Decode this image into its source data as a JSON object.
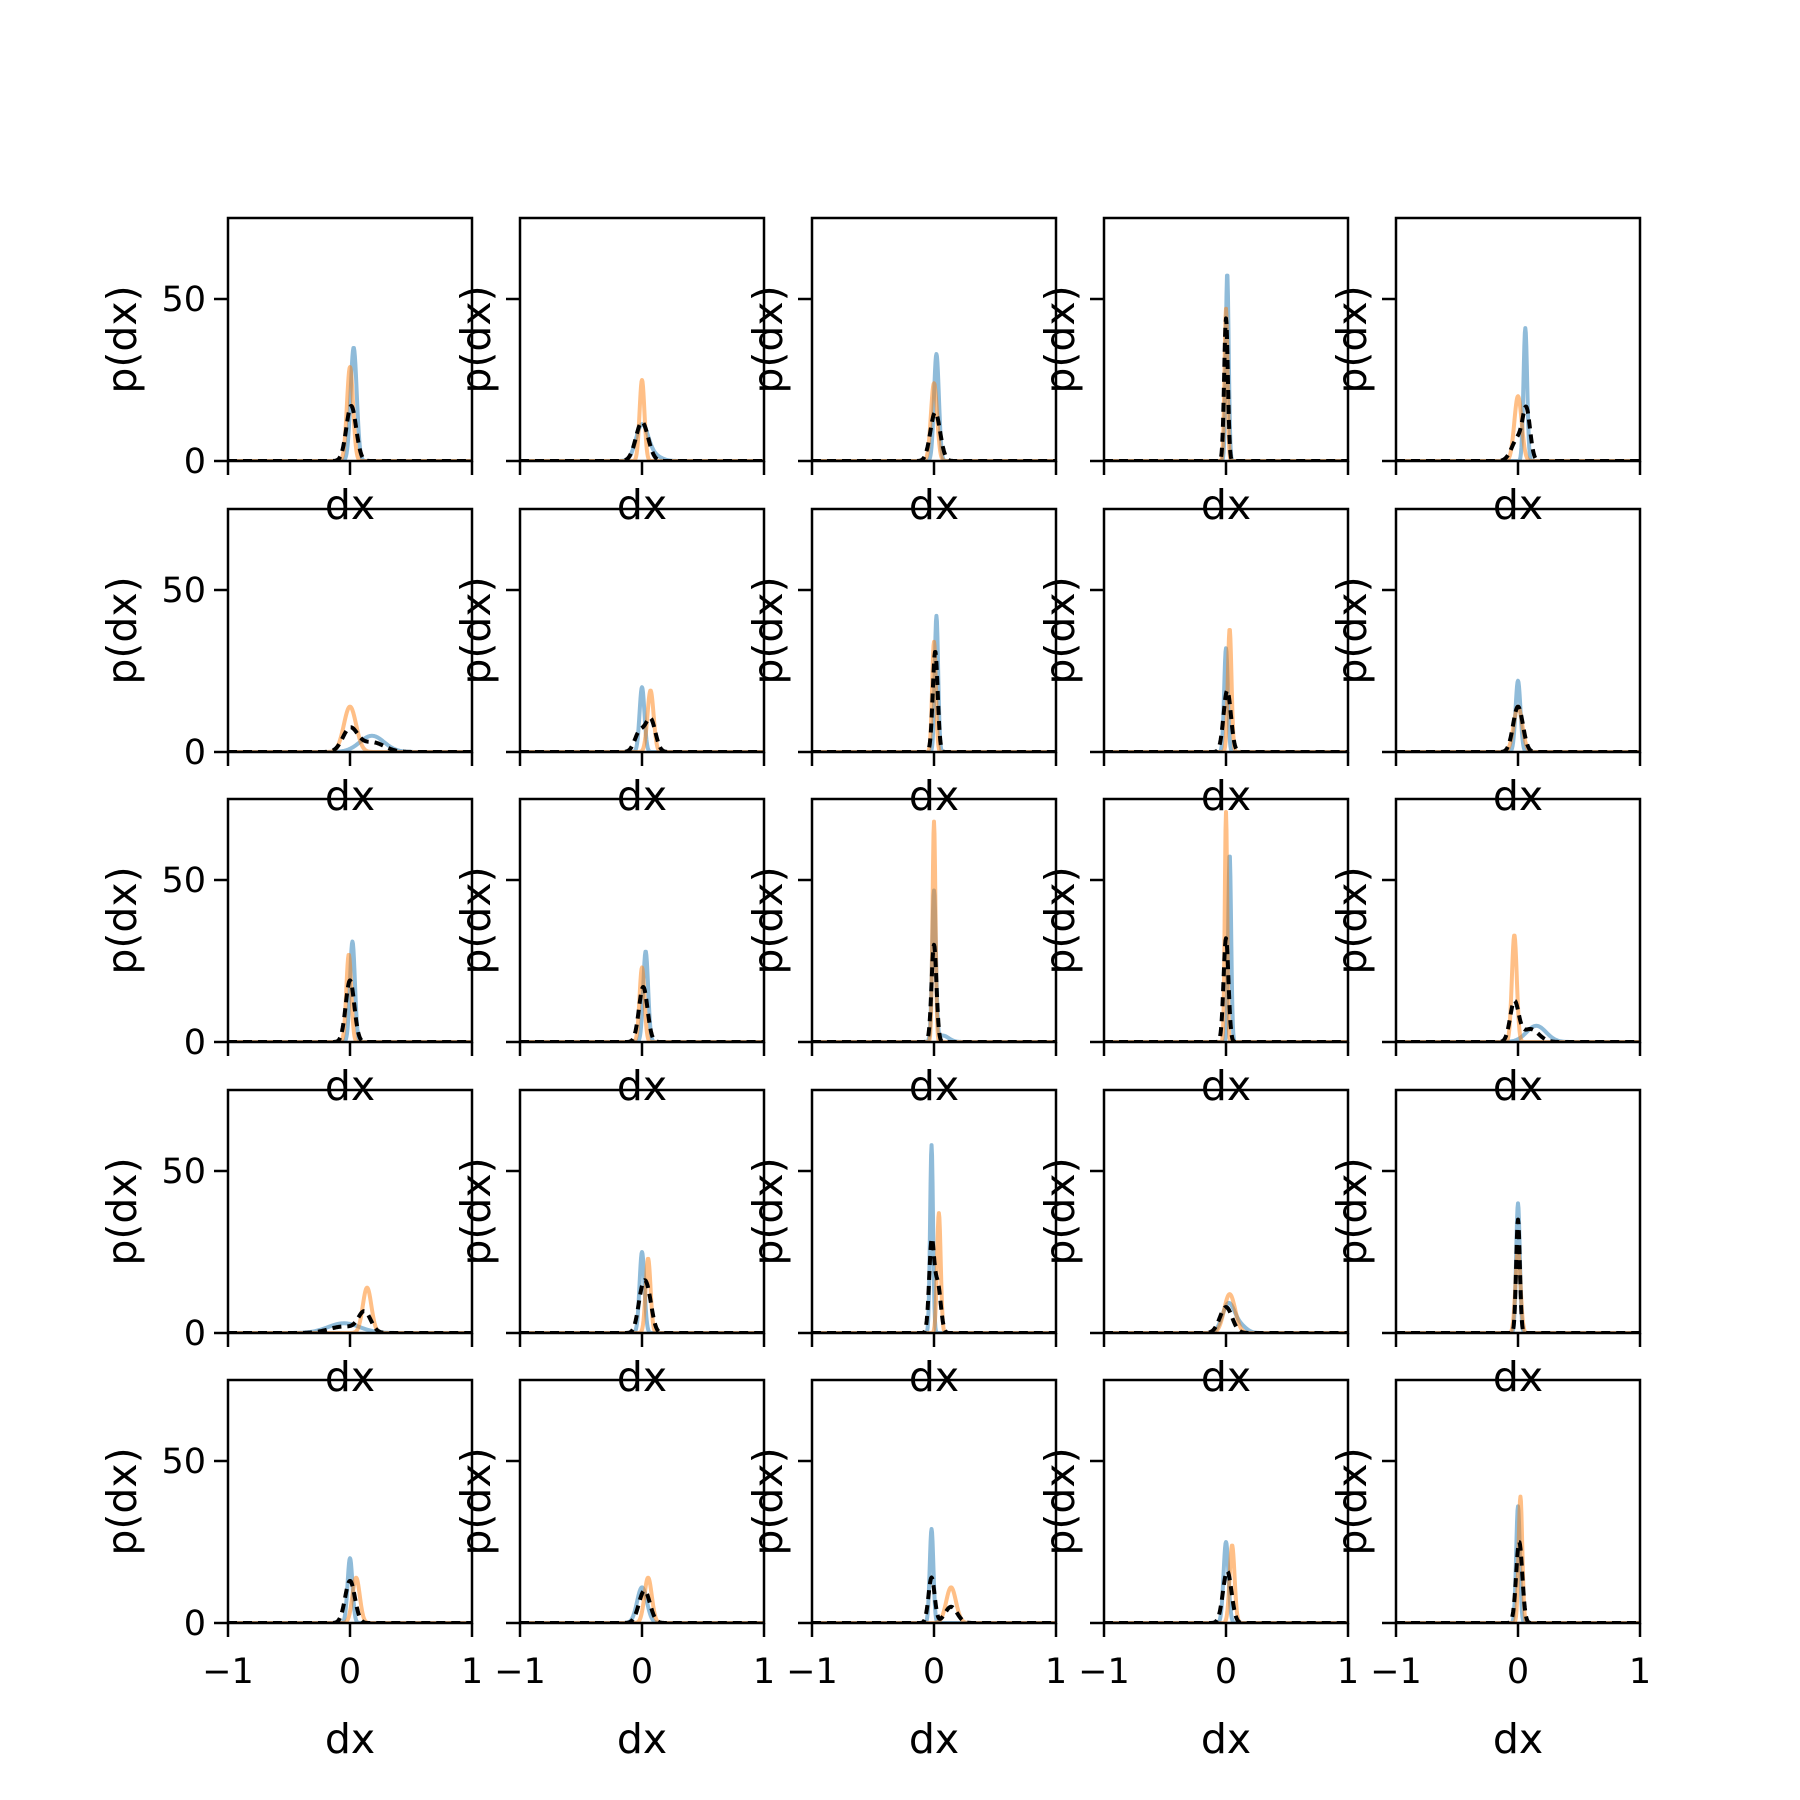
{
  "chart_data": {
    "type": "histogram-grid",
    "rows": 5,
    "cols": 5,
    "xlabel": "dx",
    "ylabel": "p(dx)",
    "xlim": [
      -1,
      1
    ],
    "ylim": [
      0,
      75
    ],
    "xticks": [
      -1,
      0,
      1
    ],
    "xtick_labels": [
      "−1",
      "0",
      "1"
    ],
    "yticks": [
      0,
      50
    ],
    "ytick_labels": [
      "0",
      "50"
    ],
    "grid": false,
    "colors": {
      "blue": "#1f77b4",
      "orange": "#ff7f0e",
      "dashed": "#000000"
    },
    "panels": [
      {
        "peaks": [
          {
            "s": "b",
            "x": 0.03,
            "h": 35,
            "w": 0.025
          },
          {
            "s": "o",
            "x": 0.0,
            "h": 29,
            "w": 0.025
          },
          {
            "s": "d",
            "x": 0.01,
            "h": 17,
            "w": 0.04
          }
        ]
      },
      {
        "peaks": [
          {
            "s": "b",
            "x": 0.0,
            "h": 11,
            "w": 0.05
          },
          {
            "s": "b",
            "x": 0.1,
            "h": 1.5,
            "w": 0.06
          },
          {
            "s": "o",
            "x": 0.0,
            "h": 25,
            "w": 0.02
          },
          {
            "s": "d",
            "x": 0.0,
            "h": 12,
            "w": 0.05
          }
        ]
      },
      {
        "peaks": [
          {
            "s": "b",
            "x": 0.02,
            "h": 33,
            "w": 0.02
          },
          {
            "s": "o",
            "x": 0.0,
            "h": 24,
            "w": 0.025
          },
          {
            "s": "d",
            "x": 0.01,
            "h": 15,
            "w": 0.04
          }
        ]
      },
      {
        "peaks": [
          {
            "s": "b",
            "x": 0.01,
            "h": 58,
            "w": 0.012
          },
          {
            "s": "o",
            "x": 0.0,
            "h": 47,
            "w": 0.012
          },
          {
            "s": "d",
            "x": 0.0,
            "h": 44,
            "w": 0.015
          }
        ]
      },
      {
        "peaks": [
          {
            "s": "b",
            "x": 0.06,
            "h": 41,
            "w": 0.015
          },
          {
            "s": "o",
            "x": 0.0,
            "h": 20,
            "w": 0.03
          },
          {
            "s": "d",
            "x": 0.07,
            "h": 14,
            "w": 0.03
          },
          {
            "s": "d",
            "x": 0.0,
            "h": 7,
            "w": 0.05
          }
        ]
      },
      {
        "peaks": [
          {
            "s": "b",
            "x": 0.18,
            "h": 5,
            "w": 0.1
          },
          {
            "s": "o",
            "x": 0.0,
            "h": 14,
            "w": 0.05
          },
          {
            "s": "d",
            "x": 0.0,
            "h": 7,
            "w": 0.06
          },
          {
            "s": "d",
            "x": 0.18,
            "h": 3,
            "w": 0.1
          }
        ]
      },
      {
        "peaks": [
          {
            "s": "b",
            "x": 0.0,
            "h": 20,
            "w": 0.02
          },
          {
            "s": "o",
            "x": 0.07,
            "h": 19,
            "w": 0.025
          },
          {
            "s": "d",
            "x": 0.07,
            "h": 10,
            "w": 0.04
          },
          {
            "s": "d",
            "x": -0.02,
            "h": 6,
            "w": 0.04
          }
        ]
      },
      {
        "peaks": [
          {
            "s": "b",
            "x": 0.02,
            "h": 42,
            "w": 0.014
          },
          {
            "s": "o",
            "x": 0.0,
            "h": 34,
            "w": 0.015
          },
          {
            "s": "d",
            "x": 0.01,
            "h": 31,
            "w": 0.02
          }
        ]
      },
      {
        "peaks": [
          {
            "s": "b",
            "x": 0.0,
            "h": 32,
            "w": 0.015
          },
          {
            "s": "o",
            "x": 0.03,
            "h": 38,
            "w": 0.015
          },
          {
            "s": "d",
            "x": 0.01,
            "h": 19,
            "w": 0.03
          }
        ]
      },
      {
        "peaks": [
          {
            "s": "b",
            "x": 0.0,
            "h": 22,
            "w": 0.02
          },
          {
            "s": "o",
            "x": 0.0,
            "h": 14,
            "w": 0.035
          },
          {
            "s": "d",
            "x": 0.0,
            "h": 14,
            "w": 0.04
          }
        ]
      },
      {
        "peaks": [
          {
            "s": "b",
            "x": 0.02,
            "h": 31,
            "w": 0.02
          },
          {
            "s": "o",
            "x": -0.01,
            "h": 27,
            "w": 0.02
          },
          {
            "s": "d",
            "x": 0.0,
            "h": 19,
            "w": 0.035
          }
        ]
      },
      {
        "peaks": [
          {
            "s": "b",
            "x": 0.03,
            "h": 28,
            "w": 0.02
          },
          {
            "s": "o",
            "x": 0.0,
            "h": 23,
            "w": 0.02
          },
          {
            "s": "d",
            "x": 0.01,
            "h": 17,
            "w": 0.035
          }
        ]
      },
      {
        "peaks": [
          {
            "s": "b",
            "x": 0.0,
            "h": 46,
            "w": 0.015
          },
          {
            "s": "b",
            "x": 0.07,
            "h": 2,
            "w": 0.05
          },
          {
            "s": "o",
            "x": 0.0,
            "h": 68,
            "w": 0.012
          },
          {
            "s": "d",
            "x": 0.0,
            "h": 30,
            "w": 0.02
          }
        ]
      },
      {
        "peaks": [
          {
            "s": "b",
            "x": 0.03,
            "h": 58,
            "w": 0.012
          },
          {
            "s": "o",
            "x": 0.0,
            "h": 71,
            "w": 0.01
          },
          {
            "s": "d",
            "x": 0.0,
            "h": 32,
            "w": 0.02
          }
        ]
      },
      {
        "peaks": [
          {
            "s": "b",
            "x": 0.15,
            "h": 5,
            "w": 0.08
          },
          {
            "s": "o",
            "x": -0.03,
            "h": 33,
            "w": 0.02
          },
          {
            "s": "d",
            "x": -0.03,
            "h": 12,
            "w": 0.035
          },
          {
            "s": "d",
            "x": 0.1,
            "h": 4,
            "w": 0.07
          }
        ]
      },
      {
        "peaks": [
          {
            "s": "b",
            "x": -0.05,
            "h": 3,
            "w": 0.13
          },
          {
            "s": "o",
            "x": 0.14,
            "h": 14,
            "w": 0.035
          },
          {
            "s": "d",
            "x": 0.12,
            "h": 6,
            "w": 0.05
          },
          {
            "s": "d",
            "x": -0.05,
            "h": 2,
            "w": 0.12
          }
        ]
      },
      {
        "peaks": [
          {
            "s": "b",
            "x": 0.0,
            "h": 25,
            "w": 0.02
          },
          {
            "s": "o",
            "x": 0.05,
            "h": 23,
            "w": 0.02
          },
          {
            "s": "d",
            "x": 0.0,
            "h": 11,
            "w": 0.035
          },
          {
            "s": "d",
            "x": 0.05,
            "h": 10,
            "w": 0.035
          }
        ]
      },
      {
        "peaks": [
          {
            "s": "b",
            "x": -0.02,
            "h": 58,
            "w": 0.012
          },
          {
            "s": "o",
            "x": 0.04,
            "h": 37,
            "w": 0.015
          },
          {
            "s": "d",
            "x": -0.02,
            "h": 27,
            "w": 0.02
          },
          {
            "s": "d",
            "x": 0.03,
            "h": 15,
            "w": 0.025
          }
        ]
      },
      {
        "peaks": [
          {
            "s": "b",
            "x": 0.02,
            "h": 9,
            "w": 0.05
          },
          {
            "s": "b",
            "x": 0.12,
            "h": 2,
            "w": 0.05
          },
          {
            "s": "o",
            "x": 0.03,
            "h": 12,
            "w": 0.045
          },
          {
            "s": "d",
            "x": 0.0,
            "h": 8,
            "w": 0.05
          }
        ]
      },
      {
        "peaks": [
          {
            "s": "b",
            "x": 0.0,
            "h": 40,
            "w": 0.015
          },
          {
            "s": "o",
            "x": 0.0,
            "h": 26,
            "w": 0.02
          },
          {
            "s": "d",
            "x": 0.0,
            "h": 35,
            "w": 0.015
          }
        ]
      },
      {
        "peaks": [
          {
            "s": "b",
            "x": 0.0,
            "h": 20,
            "w": 0.02
          },
          {
            "s": "o",
            "x": 0.05,
            "h": 14,
            "w": 0.03
          },
          {
            "s": "d",
            "x": 0.0,
            "h": 13,
            "w": 0.04
          }
        ]
      },
      {
        "peaks": [
          {
            "s": "b",
            "x": 0.0,
            "h": 11,
            "w": 0.04
          },
          {
            "s": "o",
            "x": 0.05,
            "h": 14,
            "w": 0.03
          },
          {
            "s": "d",
            "x": 0.02,
            "h": 10,
            "w": 0.045
          }
        ]
      },
      {
        "peaks": [
          {
            "s": "b",
            "x": -0.02,
            "h": 29,
            "w": 0.015
          },
          {
            "s": "o",
            "x": 0.14,
            "h": 11,
            "w": 0.04
          },
          {
            "s": "d",
            "x": -0.02,
            "h": 14,
            "w": 0.025
          },
          {
            "s": "d",
            "x": 0.14,
            "h": 5,
            "w": 0.05
          }
        ]
      },
      {
        "peaks": [
          {
            "s": "b",
            "x": 0.0,
            "h": 25,
            "w": 0.02
          },
          {
            "s": "o",
            "x": 0.05,
            "h": 24,
            "w": 0.02
          },
          {
            "s": "d",
            "x": 0.01,
            "h": 16,
            "w": 0.035
          }
        ]
      },
      {
        "peaks": [
          {
            "s": "b",
            "x": 0.0,
            "h": 36,
            "w": 0.015
          },
          {
            "s": "o",
            "x": 0.02,
            "h": 39,
            "w": 0.015
          },
          {
            "s": "d",
            "x": 0.01,
            "h": 25,
            "w": 0.025
          }
        ]
      }
    ]
  }
}
